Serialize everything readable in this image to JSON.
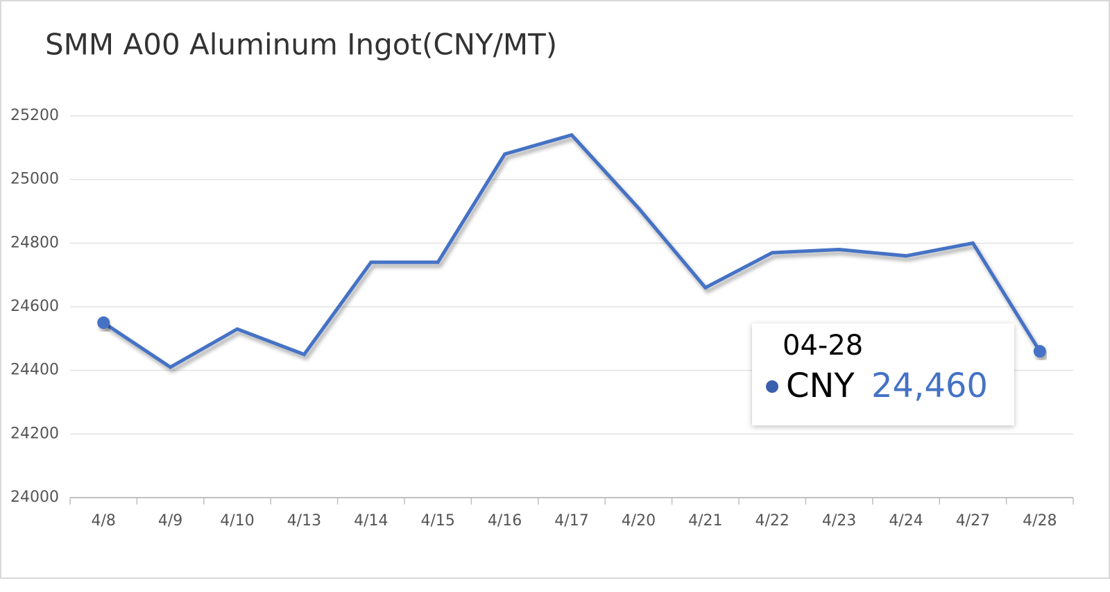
{
  "chart_data": {
    "type": "line",
    "title": "SMM A00 Aluminum Ingot(CNY/MT)",
    "categories": [
      "4/8",
      "4/9",
      "4/10",
      "4/13",
      "4/14",
      "4/15",
      "4/16",
      "4/17",
      "4/20",
      "4/21",
      "4/22",
      "4/23",
      "4/24",
      "4/27",
      "4/28"
    ],
    "series": [
      {
        "name": "CNY",
        "color": "#4472c4",
        "values": [
          24550,
          24410,
          24530,
          24450,
          24740,
          24740,
          25080,
          25140,
          24910,
          24660,
          24770,
          24780,
          24760,
          24800,
          24460
        ]
      }
    ],
    "ylim": [
      24000,
      25200
    ],
    "yticks": [
      24000,
      24200,
      24400,
      24600,
      24800,
      25000,
      25200
    ],
    "grid": true,
    "tooltip": {
      "title": "04-28",
      "value_label": "24,460"
    }
  }
}
